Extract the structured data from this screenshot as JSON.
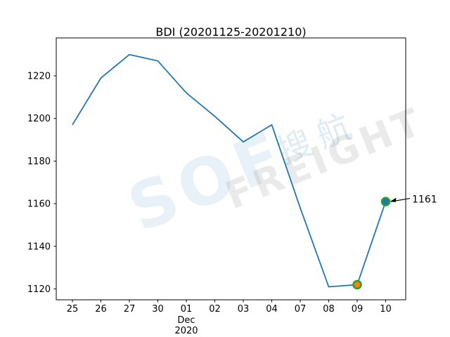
{
  "title": "BDI (20201125-20201210)",
  "watermark": {
    "latin_main": "SOF",
    "latin_sub": "FREIGHT",
    "cn": "搜航"
  },
  "colors": {
    "line": "#1f77b4",
    "marker_edge": "#2ca02c",
    "marker_prev_fill": "#ff7f0e",
    "marker_last_fill": "#1f77b4",
    "axis": "#000000",
    "background": "#ffffff"
  },
  "chart_data": {
    "type": "line",
    "title": "BDI (20201125-20201210)",
    "xlabel": "",
    "ylabel": "",
    "grid": false,
    "legend": "none",
    "x_tick_labels": [
      "25",
      "26",
      "27",
      "30",
      "01",
      "02",
      "03",
      "04",
      "07",
      "08",
      "09",
      "10"
    ],
    "x_period_label": {
      "index": 4,
      "lines": [
        "Dec",
        "2020"
      ]
    },
    "series": [
      {
        "name": "BDI",
        "values": [
          1197,
          1219,
          1230,
          1227,
          1212,
          1201,
          1189,
          1197,
          1158,
          1121,
          1122,
          1161
        ]
      }
    ],
    "y_ticks": [
      1120,
      1140,
      1160,
      1180,
      1200,
      1220
    ],
    "ylim": [
      1114.9,
      1237.8
    ],
    "markers": [
      {
        "x_index": 10,
        "fill": "#ff7f0e"
      },
      {
        "x_index": 11,
        "fill": "#1f77b4"
      }
    ],
    "annotation": {
      "label": "1161",
      "x_index": 11,
      "value": 1161
    }
  }
}
